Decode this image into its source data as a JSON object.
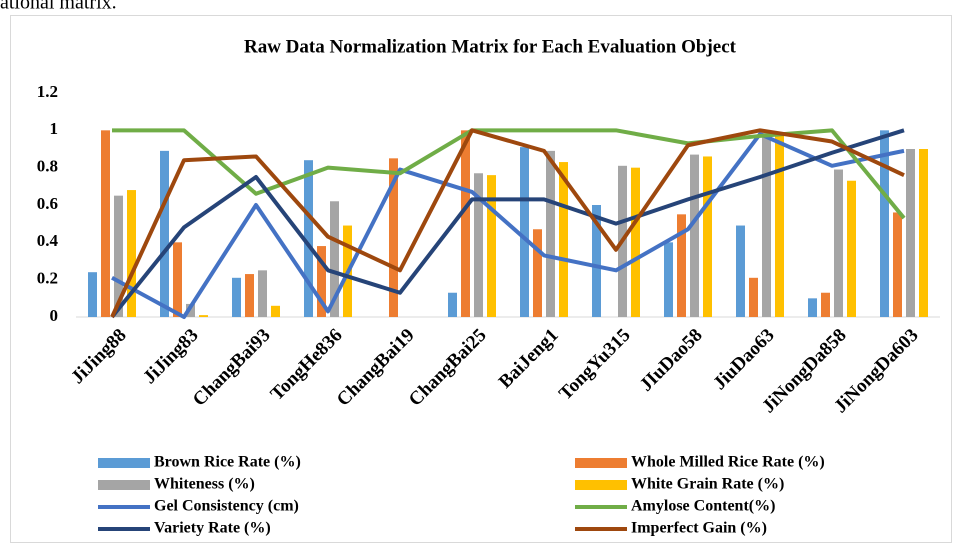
{
  "caption": "ational matrix.",
  "chart_data": {
    "type": "bar",
    "title": "Raw Data Normalization Matrix for Each Evaluation Object",
    "categories": [
      "JiJing88",
      "JiJing83",
      "ChangBai93",
      "TongHe836",
      "ChangBai19",
      "ChangBai25",
      "BaiJeng1",
      "TongYu315",
      "JIuDao58",
      "JiuDao63",
      "JiNongDa858",
      "JiNongDa603"
    ],
    "ylim": [
      0,
      1.2
    ],
    "yticks": [
      0,
      0.2,
      0.4,
      0.6,
      0.8,
      1,
      1.2
    ],
    "grid": false,
    "series": [
      {
        "name": "Brown Rice Rate (%)",
        "mark": "bar",
        "color": "#5b9bd5",
        "values": [
          0.24,
          0.89,
          0.21,
          0.84,
          0,
          0.13,
          0.91,
          0.6,
          0.4,
          0.49,
          0.1,
          1.0
        ]
      },
      {
        "name": "Whole Milled Rice Rate (%)",
        "mark": "bar",
        "color": "#ed7d31",
        "values": [
          1.0,
          0.4,
          0.23,
          0.38,
          0.85,
          1.0,
          0.47,
          0,
          0.55,
          0.21,
          0.13,
          0.56
        ]
      },
      {
        "name": "Whiteness (%)",
        "mark": "bar",
        "color": "#a5a5a5",
        "values": [
          0.65,
          0.07,
          0.25,
          0.62,
          0,
          0.77,
          0.89,
          0.81,
          0.87,
          1.0,
          0.79,
          0.9
        ]
      },
      {
        "name": "White Grain Rate (%)",
        "mark": "bar",
        "color": "#ffc000",
        "values": [
          0.68,
          0.01,
          0.06,
          0.49,
          0,
          0.76,
          0.83,
          0.8,
          0.86,
          0.97,
          0.73,
          0.9
        ]
      },
      {
        "name": "Gel Consistency (cm)",
        "mark": "line",
        "color": "#4472c4",
        "values": [
          0.21,
          0,
          0.6,
          0.03,
          0.79,
          0.67,
          0.33,
          0.25,
          0.47,
          0.98,
          0.81,
          0.89
        ]
      },
      {
        "name": "Amylose Content(%)",
        "mark": "line",
        "color": "#70ad47",
        "values": [
          1,
          1,
          0.66,
          0.8,
          0.77,
          1,
          1,
          1,
          0.93,
          0.97,
          1,
          0.53
        ]
      },
      {
        "name": "Variety Rate (%)",
        "mark": "line",
        "color": "#264478",
        "values": [
          0,
          0.48,
          0.75,
          0.25,
          0.13,
          0.63,
          0.63,
          0.5,
          0.63,
          0.75,
          0.88,
          1.0
        ]
      },
      {
        "name": "Imperfect Gain (%)",
        "mark": "line",
        "color": "#9e480e",
        "values": [
          0,
          0.84,
          0.86,
          0.43,
          0.25,
          1.0,
          0.89,
          0.36,
          0.92,
          1.0,
          0.94,
          0.76
        ]
      }
    ]
  }
}
